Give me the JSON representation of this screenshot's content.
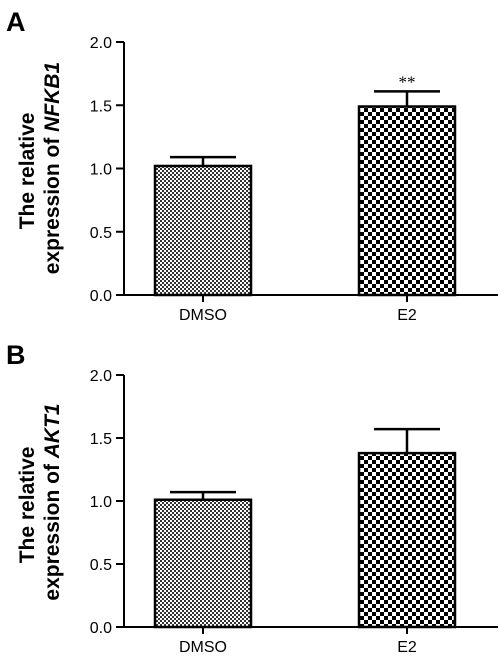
{
  "chart_data": [
    {
      "panel": "A",
      "type": "bar",
      "categories": [
        "DMSO",
        "E2"
      ],
      "values": [
        1.02,
        1.49
      ],
      "errors": [
        0.07,
        0.12
      ],
      "patterns": [
        "fine-check",
        "coarse-check"
      ],
      "annotations": [
        "",
        "**"
      ],
      "ylabel_line1": "The relative",
      "ylabel_line2_prefix": "expression of ",
      "ylabel_gene": "NFKB1",
      "ylim": [
        0,
        2.0
      ],
      "yticks": [
        "0.0",
        "0.5",
        "1.0",
        "1.5",
        "2.0"
      ]
    },
    {
      "panel": "B",
      "type": "bar",
      "categories": [
        "DMSO",
        "E2"
      ],
      "values": [
        1.01,
        1.38
      ],
      "errors": [
        0.06,
        0.19
      ],
      "patterns": [
        "fine-check",
        "coarse-check"
      ],
      "annotations": [
        "",
        ""
      ],
      "ylabel_line1": "The relative",
      "ylabel_line2_prefix": "expression of ",
      "ylabel_gene": "AKT1",
      "ylim": [
        0,
        2.0
      ],
      "yticks": [
        "0.0",
        "0.5",
        "1.0",
        "1.5",
        "2.0"
      ]
    }
  ],
  "colors": {
    "ink": "#000000",
    "background": "#ffffff"
  }
}
